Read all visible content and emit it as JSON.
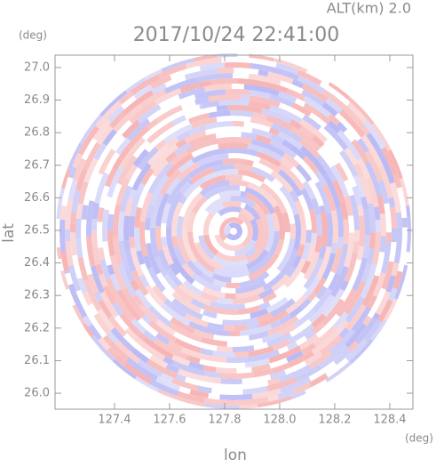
{
  "chart_data": {
    "type": "radar-ppi",
    "title": "2017/10/24 22:41:00",
    "subtitle": "ALT(km) 2.0",
    "x_label": "lon",
    "y_label": "lat",
    "x_unit": "(deg)",
    "y_unit": "(deg)",
    "xlim": [
      127.184,
      128.484
    ],
    "ylim": [
      25.951,
      27.038
    ],
    "xticks": [
      127.4,
      127.6,
      127.8,
      {
        "value": 128,
        "label": "128.0"
      },
      128.2,
      128.4
    ],
    "yticks": [
      {
        "value": 26,
        "label": "26.0"
      },
      26.1,
      26.2,
      26.3,
      26.4,
      26.5,
      26.6,
      26.7,
      26.8,
      26.9,
      {
        "value": 27,
        "label": "27.0"
      }
    ],
    "colors": [
      "#f7b4b4",
      "#b9b9f5"
    ]
  }
}
